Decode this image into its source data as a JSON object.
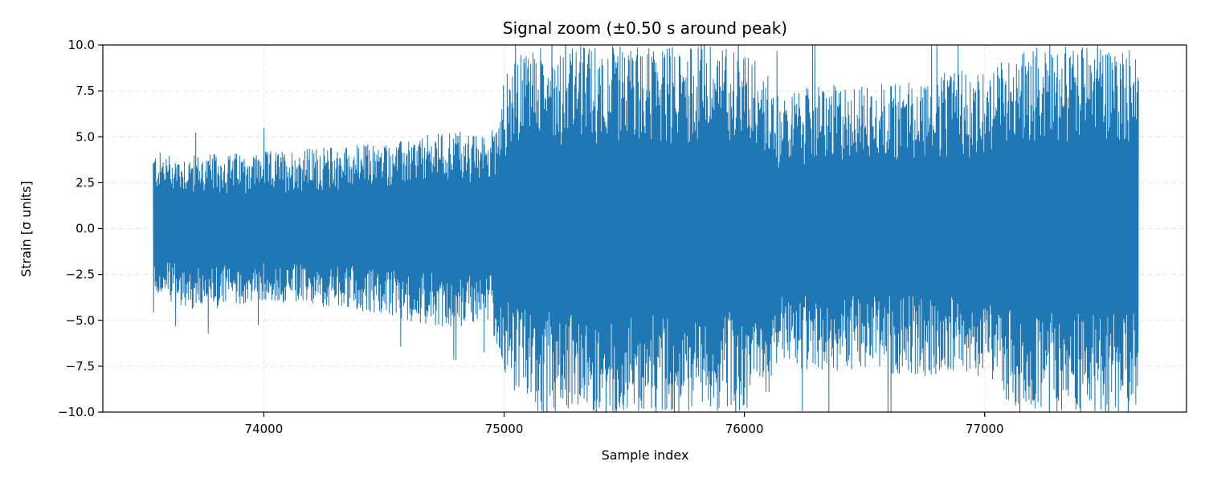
{
  "chart_data": {
    "type": "line",
    "title": "Signal zoom (±0.50 s around peak)",
    "xlabel": "Sample index",
    "ylabel": "Strain [σ units]",
    "xlim": [
      73330,
      77840
    ],
    "ylim": [
      -10.0,
      10.0
    ],
    "xticks": [
      74000,
      75000,
      76000,
      77000
    ],
    "xtick_labels": [
      "74000",
      "75000",
      "76000",
      "77000"
    ],
    "yticks": [
      -10.0,
      -7.5,
      -5.0,
      -2.5,
      0.0,
      2.5,
      5.0,
      7.5,
      10.0
    ],
    "ytick_labels": [
      "−10.0",
      "−7.5",
      "−5.0",
      "−2.5",
      "0.0",
      "2.5",
      "5.0",
      "7.5",
      "10.0"
    ],
    "grid": true,
    "series": [
      {
        "color": "#1f77b4",
        "x_range": [
          73540,
          77640
        ],
        "envelope": {
          "x": [
            73540,
            73700,
            74000,
            74300,
            74600,
            74800,
            74900,
            74950,
            75000,
            75100,
            75200,
            75300,
            75500,
            75700,
            75900,
            76000,
            76100,
            76150,
            76200,
            76300,
            76500,
            76700,
            76900,
            77000,
            77100,
            77200,
            77400,
            77640
          ],
          "upper": [
            4.2,
            4.0,
            4.2,
            4.5,
            4.8,
            5.5,
            5.0,
            5.5,
            8.3,
            10.0,
            10.0,
            10.0,
            10.0,
            10.0,
            10.0,
            10.0,
            8.5,
            7.0,
            7.5,
            7.8,
            7.8,
            8.2,
            8.6,
            8.5,
            9.5,
            10.0,
            10.0,
            10.0
          ],
          "lower": [
            -3.5,
            -4.5,
            -4.0,
            -4.3,
            -5.0,
            -5.5,
            -5.0,
            -5.5,
            -8.0,
            -10.0,
            -10.0,
            -10.0,
            -10.0,
            -10.0,
            -10.0,
            -10.0,
            -9.0,
            -7.0,
            -7.5,
            -7.8,
            -7.8,
            -8.0,
            -8.2,
            -8.3,
            -9.5,
            -10.0,
            -10.0,
            -10.0
          ]
        }
      }
    ]
  }
}
